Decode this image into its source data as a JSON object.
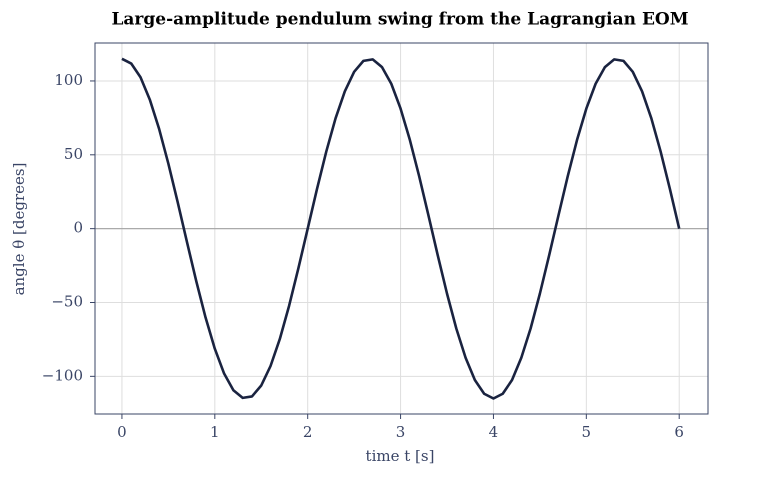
{
  "chart_data": {
    "type": "line",
    "title": "Large-amplitude pendulum swing from the Lagrangian EOM",
    "x_label": "time  t  [s]",
    "y_label": "angle  θ  [degrees]",
    "x": [
      0,
      0.1,
      0.2,
      0.3,
      0.4,
      0.5,
      0.6,
      0.7,
      0.8,
      0.9,
      1,
      1.1,
      1.2,
      1.3,
      1.4,
      1.5,
      1.6,
      1.7,
      1.8,
      1.9,
      2,
      2.1,
      2.2,
      2.3,
      2.4,
      2.5,
      2.6,
      2.7,
      2.8,
      2.9,
      3,
      3.1,
      3.2,
      3.3,
      3.4,
      3.5,
      3.6,
      3.7,
      3.8,
      3.9,
      4,
      4.1,
      4.2,
      4.3,
      4.4,
      4.5,
      4.6,
      4.7,
      4.8,
      4.9,
      5,
      5.1,
      5.2,
      5.3,
      5.4,
      5.5,
      5.6,
      5.7,
      5.8,
      5.9,
      6
    ],
    "values": [
      115,
      111.8,
      102.5,
      87.4,
      67.6,
      44.0,
      18.0,
      -9.0,
      -35.5,
      -60.1,
      -81.3,
      -98.1,
      -109.4,
      -114.6,
      -113.6,
      -106.2,
      -93.0,
      -74.7,
      -52.2,
      -26.8,
      0,
      26.8,
      52.2,
      74.7,
      93.0,
      106.2,
      113.6,
      114.6,
      109.4,
      98.1,
      81.3,
      60.1,
      35.5,
      9.0,
      -18.0,
      -44.0,
      -67.6,
      -87.4,
      -102.5,
      -111.8,
      -115,
      -111.8,
      -102.5,
      -87.4,
      -67.6,
      -44.0,
      -18.0,
      9.0,
      35.5,
      60.1,
      81.3,
      98.1,
      109.4,
      114.6,
      113.6,
      106.2,
      93.0,
      74.7,
      52.2,
      26.8,
      0
    ],
    "color": "#1a2340",
    "xlim": [
      -0.29,
      6.31
    ],
    "ylim": [
      -125.5,
      125.7
    ],
    "xticks": [
      0,
      1,
      2,
      3,
      4,
      5,
      6
    ],
    "yticks": [
      {
        "value": -100,
        "label": "−100"
      },
      {
        "value": -50,
        "label": "−50"
      },
      0,
      50,
      100
    ],
    "grid": true,
    "zero_line": true
  }
}
